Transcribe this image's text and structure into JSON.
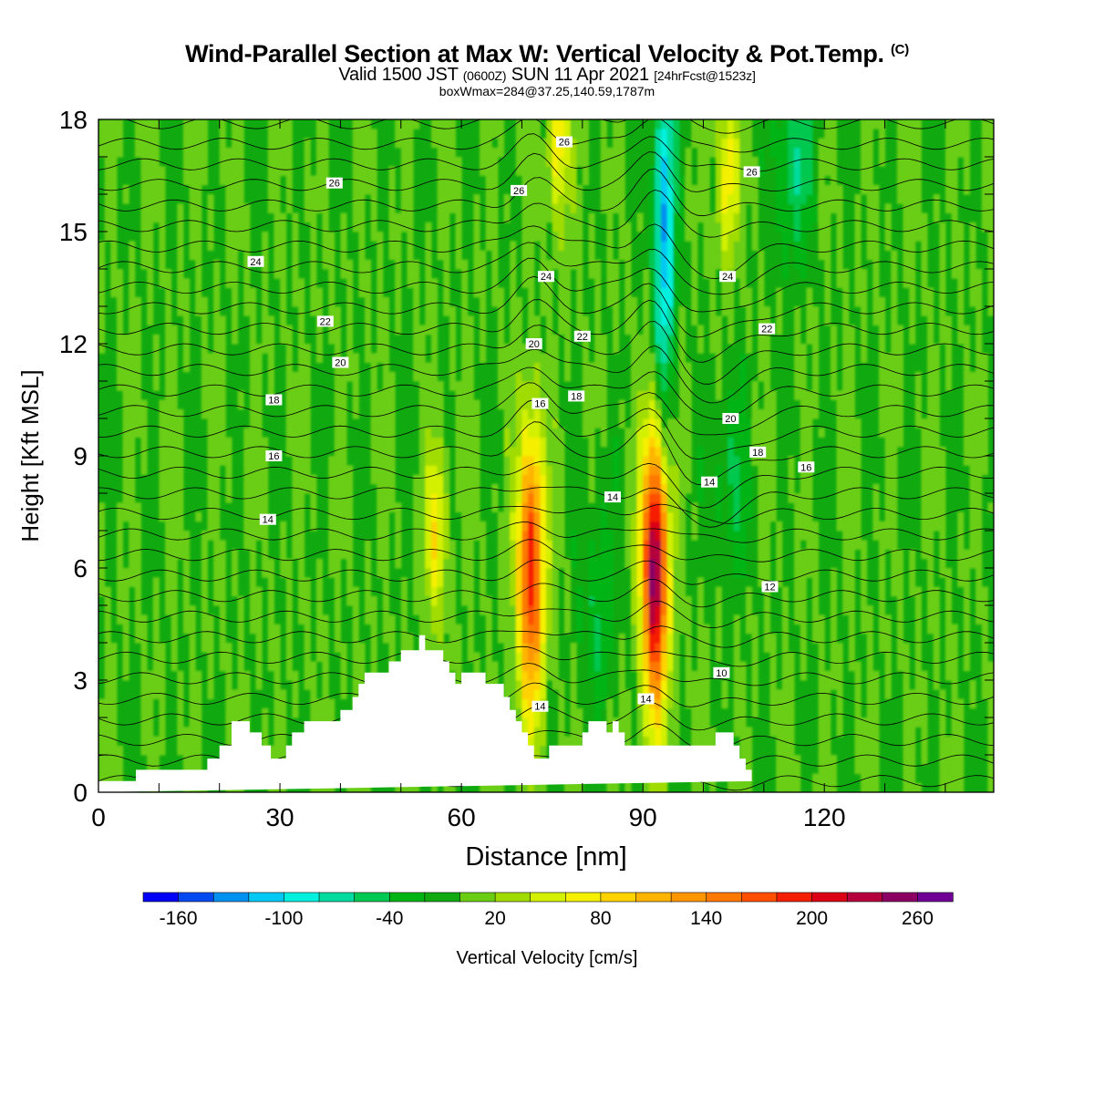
{
  "title": {
    "main": "Wind-Parallel Section at Max W: Vertical Velocity & Pot.Temp.",
    "copyright": "(C)",
    "valid_prefix": "Valid 1500 JST",
    "valid_utc": "(0600Z)",
    "valid_date": "SUN 11 Apr 2021",
    "forecast": "[24hrFcst@1523z]",
    "boxwmax": "boxWmax=284@37.25,140.59,1787m"
  },
  "chart_data": {
    "type": "heatmap",
    "xlabel": "Distance [nm]",
    "ylabel": "Height [Kft MSL]",
    "xlim": [
      0,
      148
    ],
    "ylim": [
      0,
      18
    ],
    "x_ticks": [
      0,
      30,
      60,
      90,
      120
    ],
    "y_ticks": [
      0,
      3,
      6,
      9,
      12,
      15,
      18
    ],
    "grid": false,
    "colorbar": {
      "label": "Vertical Velocity [cm/s]",
      "min": -180,
      "max": 280,
      "step": 20,
      "tick_values": [
        -160,
        -100,
        -40,
        20,
        80,
        140,
        200,
        260
      ],
      "tick_labels": [
        "-160",
        "-100",
        "-40",
        "20",
        "80",
        "140",
        "200",
        "260"
      ],
      "colors": [
        "#0000f5",
        "#0048f0",
        "#0090f0",
        "#00c8f5",
        "#00f0e0",
        "#00dca0",
        "#00c850",
        "#00b414",
        "#10aa10",
        "#6acd12",
        "#a0dc00",
        "#d2f000",
        "#f5f000",
        "#ffd200",
        "#ffb400",
        "#ff9600",
        "#ff7800",
        "#ff5000",
        "#f51e00",
        "#dc0014",
        "#b4003c",
        "#8c0064",
        "#6e0096"
      ]
    },
    "updrafts": [
      {
        "x": 71.5,
        "y": 6.0,
        "peak_cm_s": 200
      },
      {
        "x": 92.0,
        "y": 6.0,
        "peak_cm_s": 260
      },
      {
        "x": 55.8,
        "y": 7.0,
        "peak_cm_s": 80
      },
      {
        "x": 104.0,
        "y": 16.5,
        "peak_cm_s": 80
      },
      {
        "x": 76.0,
        "y": 17.5,
        "peak_cm_s": 80
      }
    ],
    "downdrafts": [
      {
        "x": 93.5,
        "y": 15.0,
        "peak_cm_s": -120
      },
      {
        "x": 82.5,
        "y": 5.0,
        "peak_cm_s": -40
      },
      {
        "x": 104.5,
        "y": 8.5,
        "peak_cm_s": -40
      },
      {
        "x": 115.0,
        "y": 17.0,
        "peak_cm_s": -60
      }
    ],
    "terrain": {
      "x": [
        0,
        6.2,
        6.2,
        18,
        18,
        20,
        20,
        22,
        22,
        25,
        25,
        27,
        27,
        28.5,
        28.5,
        31,
        31,
        32,
        32,
        34,
        34,
        40,
        40,
        42,
        42,
        43,
        43,
        44,
        44,
        45,
        45,
        48,
        48,
        49,
        49,
        50,
        50,
        51,
        51,
        53,
        53,
        54,
        54,
        57,
        57,
        58,
        58,
        59,
        59,
        60,
        60,
        64,
        64,
        67,
        67,
        68,
        68,
        69,
        69,
        70,
        70,
        71,
        71,
        72,
        72,
        73,
        73,
        74.5,
        74.5,
        80,
        80,
        81,
        81,
        82,
        82,
        84,
        84,
        85,
        85,
        86,
        86,
        87,
        87,
        100,
        100,
        102,
        102,
        105,
        105,
        106,
        106,
        107,
        107,
        108,
        108,
        109,
        109,
        110,
        110,
        148
      ],
      "y": [
        0.3,
        0.3,
        0.6,
        0.6,
        0.9,
        0.9,
        1.25,
        1.25,
        1.9,
        1.9,
        1.6,
        1.6,
        1.25,
        1.25,
        0.9,
        0.9,
        1.25,
        1.25,
        1.6,
        1.6,
        1.9,
        1.9,
        2.2,
        2.2,
        2.55,
        2.55,
        2.9,
        2.9,
        3.2,
        3.2,
        3.2,
        3.2,
        3.5,
        3.5,
        3.5,
        3.5,
        3.8,
        3.8,
        3.8,
        3.8,
        4.2,
        4.2,
        3.8,
        3.8,
        3.5,
        3.5,
        3.2,
        3.2,
        2.9,
        2.9,
        3.2,
        3.2,
        2.9,
        2.9,
        2.55,
        2.55,
        2.2,
        2.2,
        1.9,
        1.9,
        1.6,
        1.6,
        1.25,
        1.25,
        0.9,
        0.9,
        0.9,
        0.9,
        1.25,
        1.25,
        1.6,
        1.6,
        1.9,
        1.9,
        1.9,
        1.9,
        1.6,
        1.6,
        1.9,
        1.9,
        1.6,
        1.6,
        1.25,
        1.25,
        1.25,
        1.25,
        1.6,
        1.6,
        1.25,
        1.25,
        0.9,
        0.9,
        0.6,
        0.6,
        0.3,
        0.3
      ]
    },
    "contour_labels": [
      {
        "text": "26",
        "x": 77,
        "y": 17.4
      },
      {
        "text": "26",
        "x": 39,
        "y": 16.3
      },
      {
        "text": "26",
        "x": 69.5,
        "y": 16.1
      },
      {
        "text": "26",
        "x": 108,
        "y": 16.6
      },
      {
        "text": "24",
        "x": 26,
        "y": 14.2
      },
      {
        "text": "24",
        "x": 74,
        "y": 13.8
      },
      {
        "text": "24",
        "x": 104,
        "y": 13.8
      },
      {
        "text": "22",
        "x": 37.5,
        "y": 12.6
      },
      {
        "text": "22",
        "x": 80,
        "y": 12.2
      },
      {
        "text": "22",
        "x": 110.5,
        "y": 12.4
      },
      {
        "text": "20",
        "x": 40,
        "y": 11.5
      },
      {
        "text": "20",
        "x": 72,
        "y": 12.0
      },
      {
        "text": "20",
        "x": 104.5,
        "y": 10.0
      },
      {
        "text": "18",
        "x": 29,
        "y": 10.5
      },
      {
        "text": "18",
        "x": 79,
        "y": 10.6
      },
      {
        "text": "18",
        "x": 109,
        "y": 9.1
      },
      {
        "text": "16",
        "x": 29,
        "y": 9.0
      },
      {
        "text": "16",
        "x": 73,
        "y": 10.4
      },
      {
        "text": "16",
        "x": 117,
        "y": 8.7
      },
      {
        "text": "14",
        "x": 28,
        "y": 7.3
      },
      {
        "text": "14",
        "x": 85,
        "y": 7.9
      },
      {
        "text": "14",
        "x": 101,
        "y": 8.3
      },
      {
        "text": "14",
        "x": 73,
        "y": 2.3
      },
      {
        "text": "14",
        "x": 90.5,
        "y": 2.5
      },
      {
        "text": "12",
        "x": 111,
        "y": 5.5
      },
      {
        "text": "10",
        "x": 103,
        "y": 3.2
      }
    ]
  }
}
